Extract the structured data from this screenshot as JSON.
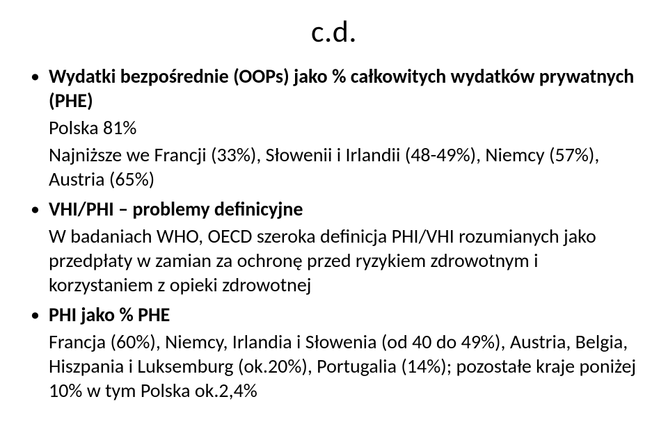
{
  "title": "c.d.",
  "bullets": [
    {
      "headline": "Wydatki bezpośrednie (OOPs) jako % całkowitych wydatków prywatnych (PHE)",
      "sub1": "Polska 81%",
      "sub2": "Najniższe we Francji (33%), Słowenii i Irlandii (48-49%), Niemcy (57%), Austria (65%)"
    },
    {
      "headline": "VHI/PHI – problemy definicyjne",
      "sub1": "W badaniach WHO, OECD szeroka definicja PHI/VHI rozumianych  jako przedpłaty w zamian za ochronę przed ryzykiem zdrowotnym i korzystaniem z opieki zdrowotnej"
    },
    {
      "headline": "PHI jako % PHE",
      "sub1": "Francja (60%), Niemcy, Irlandia i Słowenia (od 40 do 49%), Austria, Belgia, Hiszpania i Luksemburg (ok.20%), Portugalia (14%); pozostałe kraje poniżej 10% w tym Polska ok.2,4%"
    }
  ],
  "style": {
    "background": "#ffffff",
    "text_color": "#000000",
    "font_family": "Calibri",
    "title_fontsize": 44,
    "body_fontsize": 28,
    "bullet_char": "•"
  }
}
